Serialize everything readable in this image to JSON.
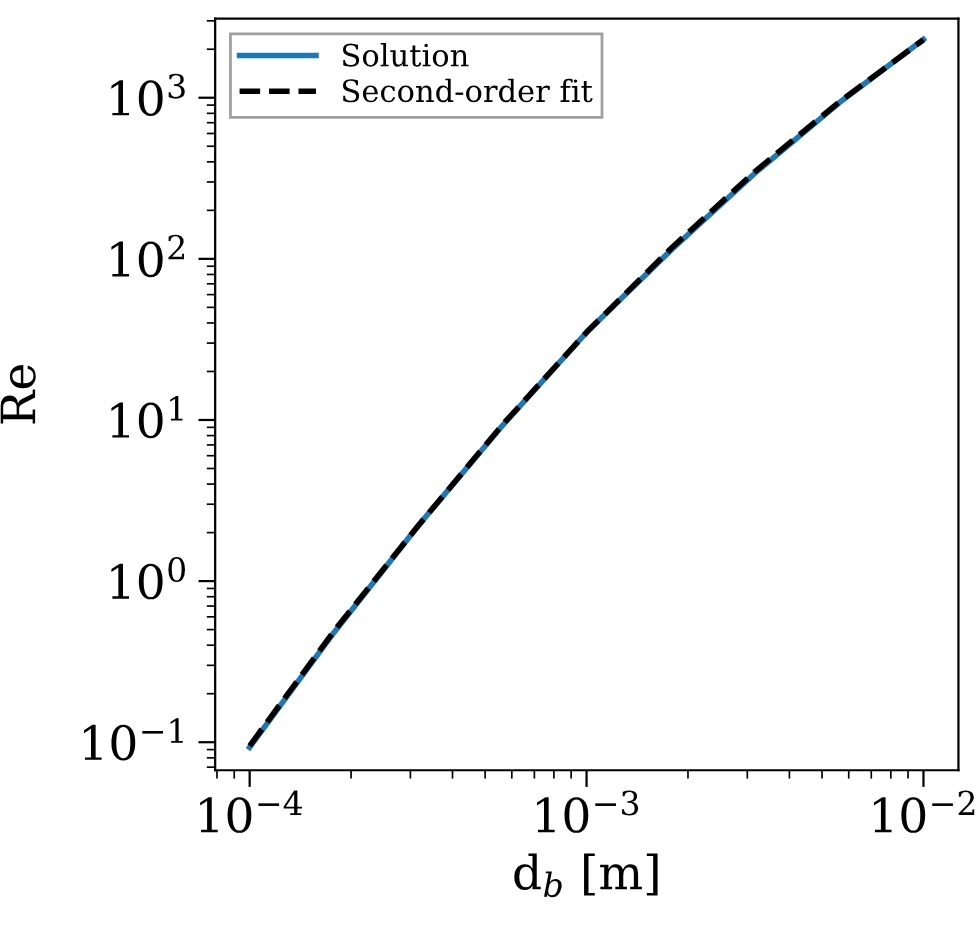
{
  "chart_data": {
    "type": "line",
    "xlabel": "d$_{b}$ [m]",
    "ylabel": "Re",
    "log": "xy",
    "xlim": [
      7.9e-05,
      0.0127
    ],
    "ylim": [
      0.067,
      3100
    ],
    "xticks": [
      {
        "value": 0.0001,
        "label": "10$^{−4}$"
      },
      {
        "value": 0.001,
        "label": "10$^{−3}$"
      },
      {
        "value": 0.01,
        "label": "10$^{−2}$"
      }
    ],
    "yticks": [
      {
        "value": 0.1,
        "label": "10$^{−1}$"
      },
      {
        "value": 1,
        "label": "10$^{0}$"
      },
      {
        "value": 10,
        "label": "10$^{1}$"
      },
      {
        "value": 100,
        "label": "10$^{2}$"
      },
      {
        "value": 1000,
        "label": "10$^{3}$"
      }
    ],
    "x": [
      0.0001,
      0.000178,
      0.000316,
      0.000562,
      0.001,
      0.00178,
      0.00316,
      0.00562,
      0.01
    ],
    "series": [
      {
        "name": "Solution",
        "color": "#1f77b4",
        "line_style": "solid",
        "values": [
          0.093,
          0.48,
          2.2,
          9.2,
          35,
          113,
          340,
          930,
          2300
        ]
      },
      {
        "name": "Second-order fit",
        "color": "#000000",
        "line_style": "dashed",
        "values": [
          0.095,
          0.49,
          2.2,
          9.3,
          35,
          116,
          348,
          940,
          2290
        ]
      }
    ],
    "legend": "top left",
    "grid": false
  }
}
